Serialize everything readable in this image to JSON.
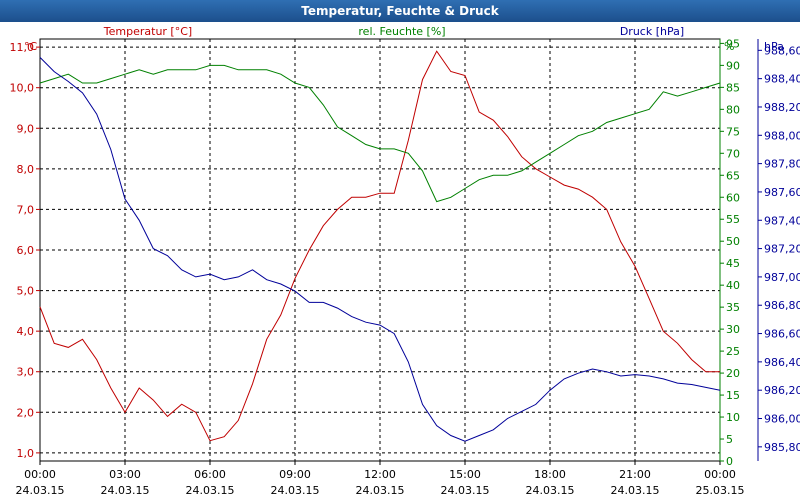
{
  "window": {
    "title": "Temperatur, Feuchte & Druck"
  },
  "colors": {
    "temperature": "#c00000",
    "humidity": "#008000",
    "pressure": "#000099",
    "grid": "#000000",
    "title_bar": "#1f5a9c"
  },
  "chart_data": {
    "type": "line",
    "title": "Temperatur, Feuchte & Druck",
    "grid": true,
    "x": {
      "range": [
        "24.03.15 00:00",
        "25.03.15 00:00"
      ],
      "ticks": [
        {
          "time": "00:00",
          "date": "24.03.15"
        },
        {
          "time": "03:00",
          "date": "24.03.15"
        },
        {
          "time": "06:00",
          "date": "24.03.15"
        },
        {
          "time": "09:00",
          "date": "24.03.15"
        },
        {
          "time": "12:00",
          "date": "24.03.15"
        },
        {
          "time": "15:00",
          "date": "24.03.15"
        },
        {
          "time": "18:00",
          "date": "24.03.15"
        },
        {
          "time": "21:00",
          "date": "24.03.15"
        },
        {
          "time": "00:00",
          "date": "25.03.15"
        }
      ]
    },
    "axes": {
      "temperature": {
        "label": "Temperatur [°C]",
        "unit": "°C",
        "ylim": [
          0.8,
          11.2
        ],
        "ticks": [
          "1,0",
          "2,0",
          "3,0",
          "4,0",
          "5,0",
          "6,0",
          "7,0",
          "8,0",
          "9,0",
          "10,0",
          "11,0"
        ]
      },
      "humidity": {
        "label": "rel. Feuchte [%]",
        "unit": "%",
        "ylim": [
          0,
          96
        ],
        "ticks": [
          "0",
          "5",
          "10",
          "15",
          "20",
          "25",
          "30",
          "35",
          "40",
          "45",
          "50",
          "55",
          "60",
          "65",
          "70",
          "75",
          "80",
          "85",
          "90",
          "95"
        ]
      },
      "pressure": {
        "label": "Druck [hPa]",
        "unit": "hPa",
        "ylim": [
          985.7,
          988.68
        ],
        "ticks": [
          "985,80",
          "986,00",
          "986,20",
          "986,40",
          "986,60",
          "986,80",
          "987,00",
          "987,20",
          "987,40",
          "987,60",
          "987,80",
          "988,00",
          "988,20",
          "988,40",
          "988,60"
        ]
      }
    },
    "series": [
      {
        "name": "Temperatur [°C]",
        "axis": "temperature",
        "x": [
          0,
          0.5,
          1,
          1.5,
          2,
          2.5,
          3,
          3.5,
          4,
          4.5,
          5,
          5.5,
          6,
          6.5,
          7,
          7.5,
          8,
          8.5,
          9,
          9.5,
          10,
          10.5,
          11,
          11.5,
          12,
          12.5,
          13,
          13.5,
          14,
          14.5,
          15,
          15.5,
          16,
          16.5,
          17,
          17.5,
          18,
          18.5,
          19,
          19.5,
          20,
          20.5,
          21,
          21.5,
          22,
          22.5,
          23,
          23.5,
          24
        ],
        "values": [
          4.6,
          3.7,
          3.6,
          3.8,
          3.3,
          2.6,
          2.0,
          2.6,
          2.3,
          1.9,
          2.2,
          2.0,
          1.3,
          1.4,
          1.8,
          2.7,
          3.8,
          4.4,
          5.3,
          6.0,
          6.6,
          7.0,
          7.3,
          7.3,
          7.4,
          7.4,
          8.7,
          10.2,
          10.9,
          10.4,
          10.3,
          9.4,
          9.2,
          8.8,
          8.3,
          8.0,
          7.8,
          7.6,
          7.5,
          7.3,
          7.0,
          6.2,
          5.6,
          4.8,
          4.0,
          3.7,
          3.3,
          3.0,
          3.0
        ]
      },
      {
        "name": "rel. Feuchte [%]",
        "axis": "humidity",
        "x": [
          0,
          0.5,
          1,
          1.5,
          2,
          2.5,
          3,
          3.5,
          4,
          4.5,
          5,
          5.5,
          6,
          6.5,
          7,
          7.5,
          8,
          8.5,
          9,
          9.5,
          10,
          10.5,
          11,
          11.5,
          12,
          12.5,
          13,
          13.5,
          14,
          14.5,
          15,
          15.5,
          16,
          16.5,
          17,
          17.5,
          18,
          18.5,
          19,
          19.5,
          20,
          20.5,
          21,
          21.5,
          22,
          22.5,
          23,
          23.5,
          24
        ],
        "values": [
          86,
          87,
          88,
          86,
          86,
          87,
          88,
          89,
          88,
          89,
          89,
          89,
          90,
          90,
          89,
          89,
          89,
          88,
          86,
          85,
          81,
          76,
          74,
          72,
          71,
          71,
          70,
          66,
          59,
          60,
          62,
          64,
          65,
          65,
          66,
          68,
          70,
          72,
          74,
          75,
          77,
          78,
          79,
          80,
          84,
          83,
          84,
          85,
          86
        ]
      },
      {
        "name": "Druck [hPa]",
        "axis": "pressure",
        "x": [
          0,
          0.5,
          1,
          1.5,
          2,
          2.5,
          3,
          3.5,
          4,
          4.5,
          5,
          5.5,
          6,
          6.5,
          7,
          7.5,
          8,
          8.5,
          9,
          9.5,
          10,
          10.5,
          11,
          11.5,
          12,
          12.5,
          13,
          13.5,
          14,
          14.5,
          15,
          15.5,
          16,
          16.5,
          17,
          17.5,
          18,
          18.5,
          19,
          19.5,
          20,
          20.5,
          21,
          21.5,
          22,
          22.5,
          23,
          23.5,
          24
        ],
        "values": [
          988.55,
          988.45,
          988.38,
          988.3,
          988.15,
          987.9,
          987.55,
          987.4,
          987.2,
          987.15,
          987.05,
          987.0,
          987.02,
          986.98,
          987.0,
          987.05,
          986.98,
          986.95,
          986.9,
          986.82,
          986.82,
          986.78,
          986.72,
          986.68,
          986.66,
          986.6,
          986.4,
          986.1,
          985.95,
          985.88,
          985.84,
          985.88,
          985.92,
          986.0,
          986.05,
          986.1,
          986.2,
          986.28,
          986.32,
          986.35,
          986.33,
          986.3,
          986.31,
          986.3,
          986.28,
          986.25,
          986.24,
          986.22,
          986.2
        ]
      }
    ]
  }
}
